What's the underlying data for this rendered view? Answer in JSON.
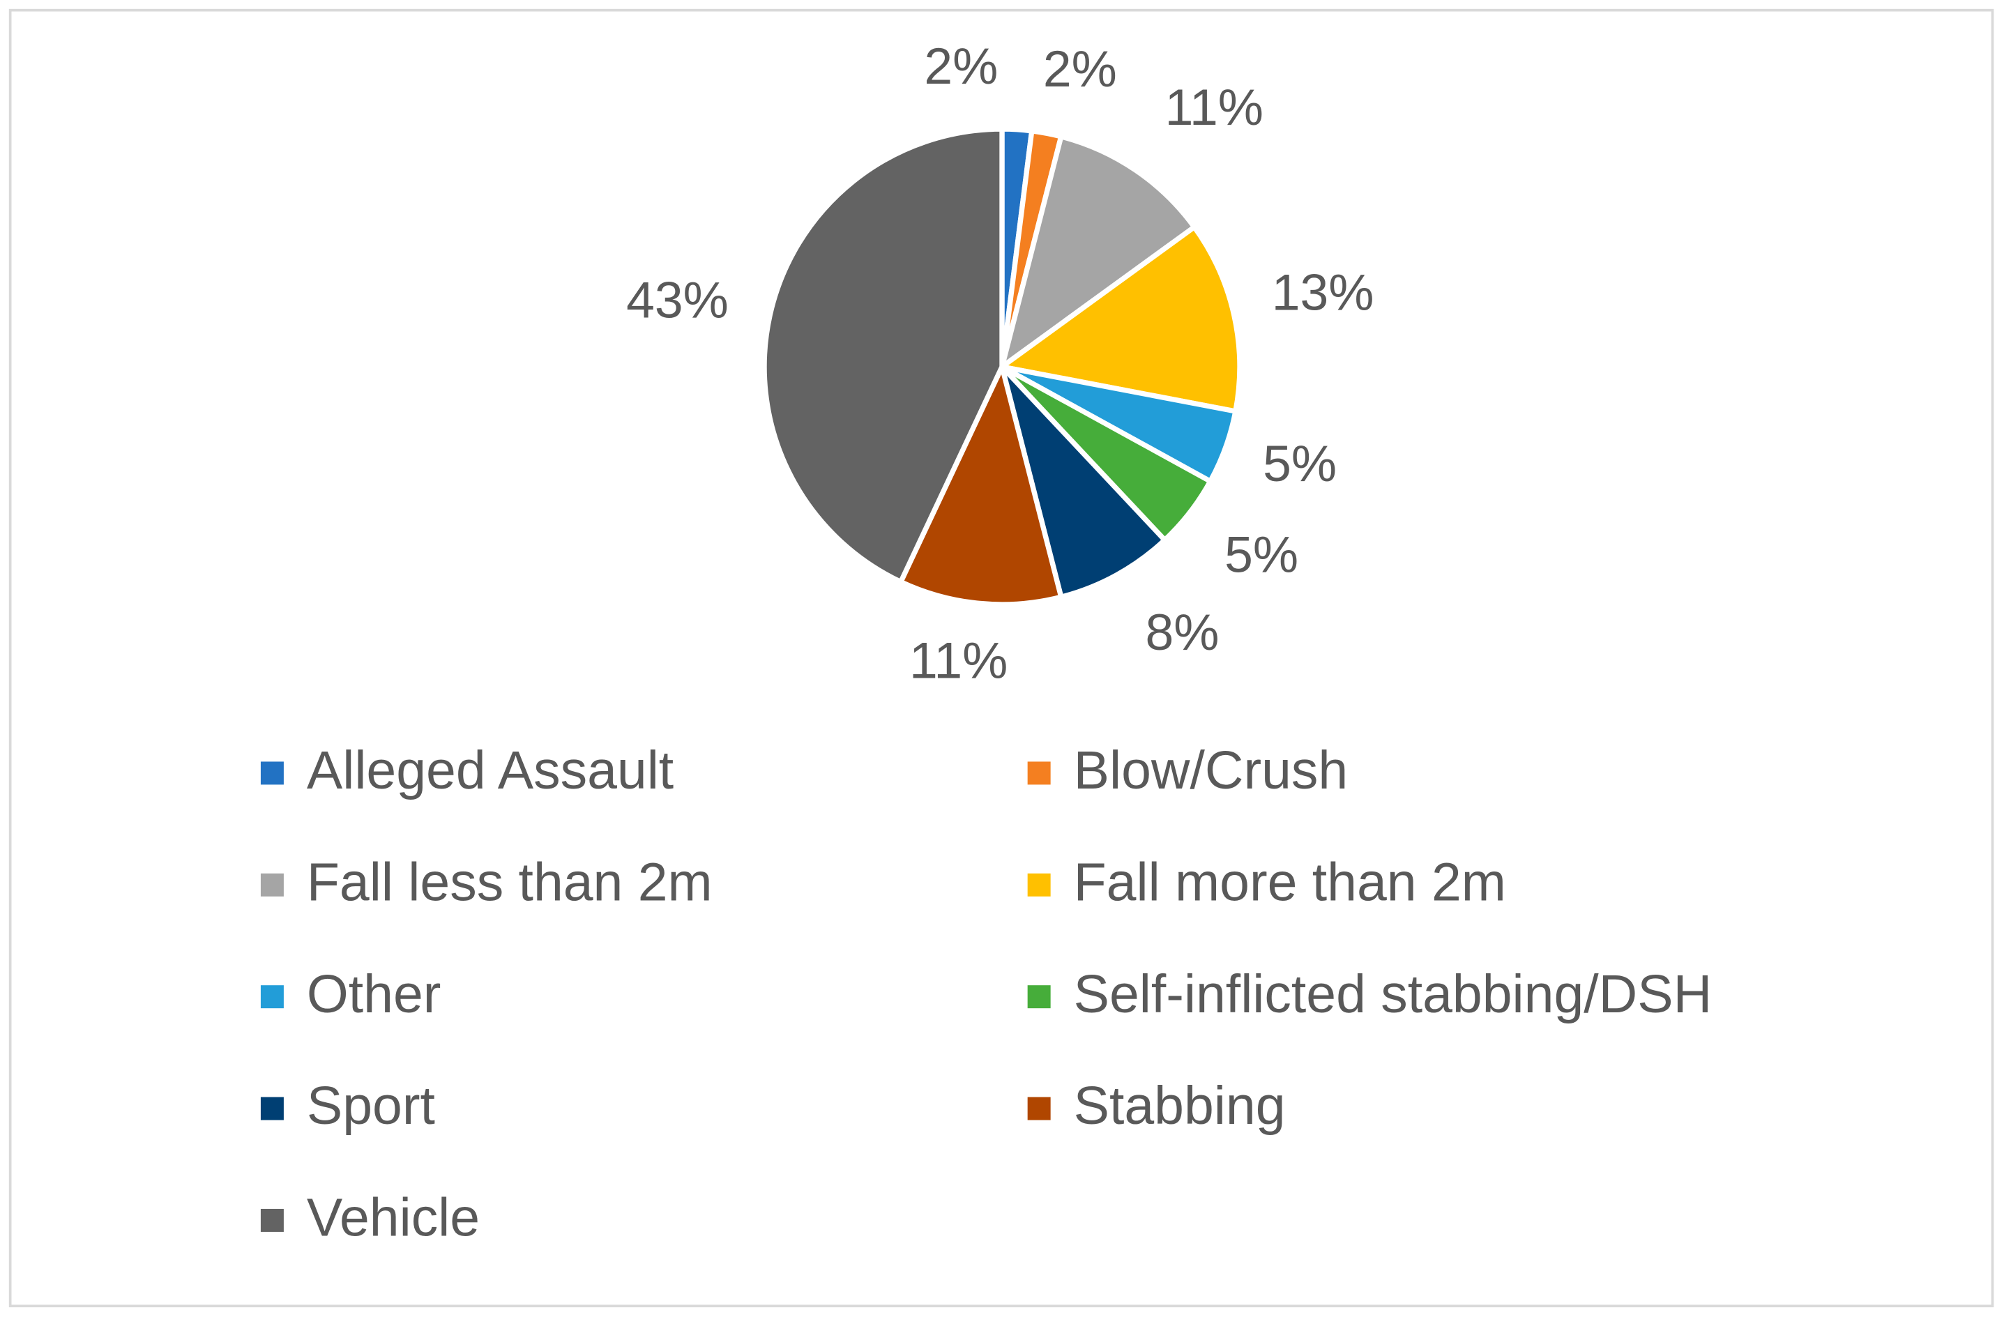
{
  "chart_data": {
    "type": "pie",
    "categories": [
      "Alleged Assault",
      "Blow/Crush",
      "Fall less than 2m",
      "Fall more than 2m",
      "Other",
      "Self-inflicted stabbing/DSH",
      "Sport",
      "Stabbing",
      "Vehicle"
    ],
    "values": [
      2,
      2,
      11,
      13,
      5,
      5,
      8,
      11,
      43
    ],
    "value_labels": [
      "2%",
      "2%",
      "11%",
      "13%",
      "5%",
      "5%",
      "8%",
      "11%",
      "43%"
    ],
    "colors": [
      "#2272c3",
      "#f47f20",
      "#a5a5a5",
      "#ffc000",
      "#229dd8",
      "#46ad3a",
      "#003f73",
      "#b04600",
      "#636363"
    ],
    "legend": "bottom"
  }
}
